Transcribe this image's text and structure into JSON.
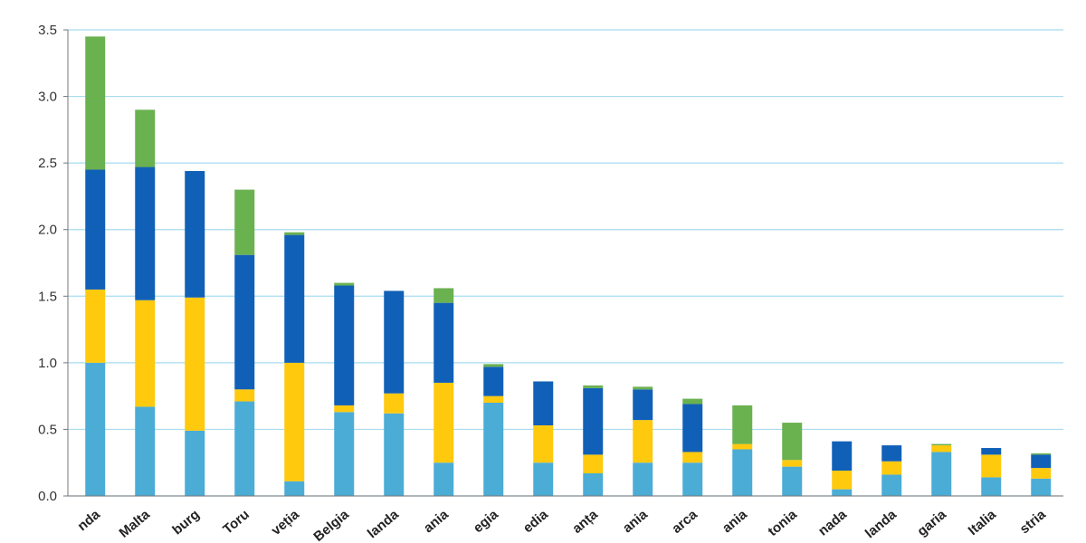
{
  "chart_data": {
    "type": "stacked_bar",
    "categories": [
      "nda",
      "Malta",
      "burg",
      "Toru",
      "veția",
      "Belgia",
      "landa",
      "ania",
      "egia",
      "edia",
      "anța",
      "ania",
      "arca",
      "ania",
      "tonia",
      "nada",
      "landa",
      "garia",
      "Italia",
      "stria"
    ],
    "series": [
      {
        "color": "#4bacd6",
        "values": [
          1.0,
          0.67,
          0.49,
          0.71,
          0.11,
          0.63,
          0.62,
          0.25,
          0.7,
          0.25,
          0.17,
          0.25,
          0.25,
          0.35,
          0.22,
          0.05,
          0.16,
          0.33,
          0.14,
          0.13
        ]
      },
      {
        "color": "#ffc90e",
        "values": [
          0.55,
          0.8,
          1.0,
          0.09,
          0.89,
          0.05,
          0.15,
          0.6,
          0.05,
          0.28,
          0.14,
          0.32,
          0.08,
          0.04,
          0.05,
          0.14,
          0.1,
          0.05,
          0.17,
          0.08
        ]
      },
      {
        "color": "#1160b7",
        "values": [
          0.9,
          1.0,
          0.95,
          1.01,
          0.96,
          0.9,
          0.77,
          0.6,
          0.22,
          0.33,
          0.5,
          0.23,
          0.36,
          0,
          0,
          0.22,
          0.12,
          0,
          0.05,
          0.1
        ]
      },
      {
        "color": "#6ab150",
        "values": [
          1.0,
          0.43,
          0,
          0.49,
          0.02,
          0.02,
          0,
          0.11,
          0.02,
          0,
          0.02,
          0.02,
          0.04,
          0.29,
          0.28,
          0,
          0,
          0.01,
          0,
          0.01
        ]
      }
    ],
    "ylim": [
      0,
      3.5
    ],
    "yticks": [
      {
        "value": 0,
        "label": "0.0"
      },
      0.5,
      {
        "value": 1,
        "label": "1.0"
      },
      1.5,
      {
        "value": 2,
        "label": "2.0"
      },
      2.5,
      {
        "value": 3,
        "label": "3.0"
      },
      3.5
    ],
    "grid": true
  }
}
